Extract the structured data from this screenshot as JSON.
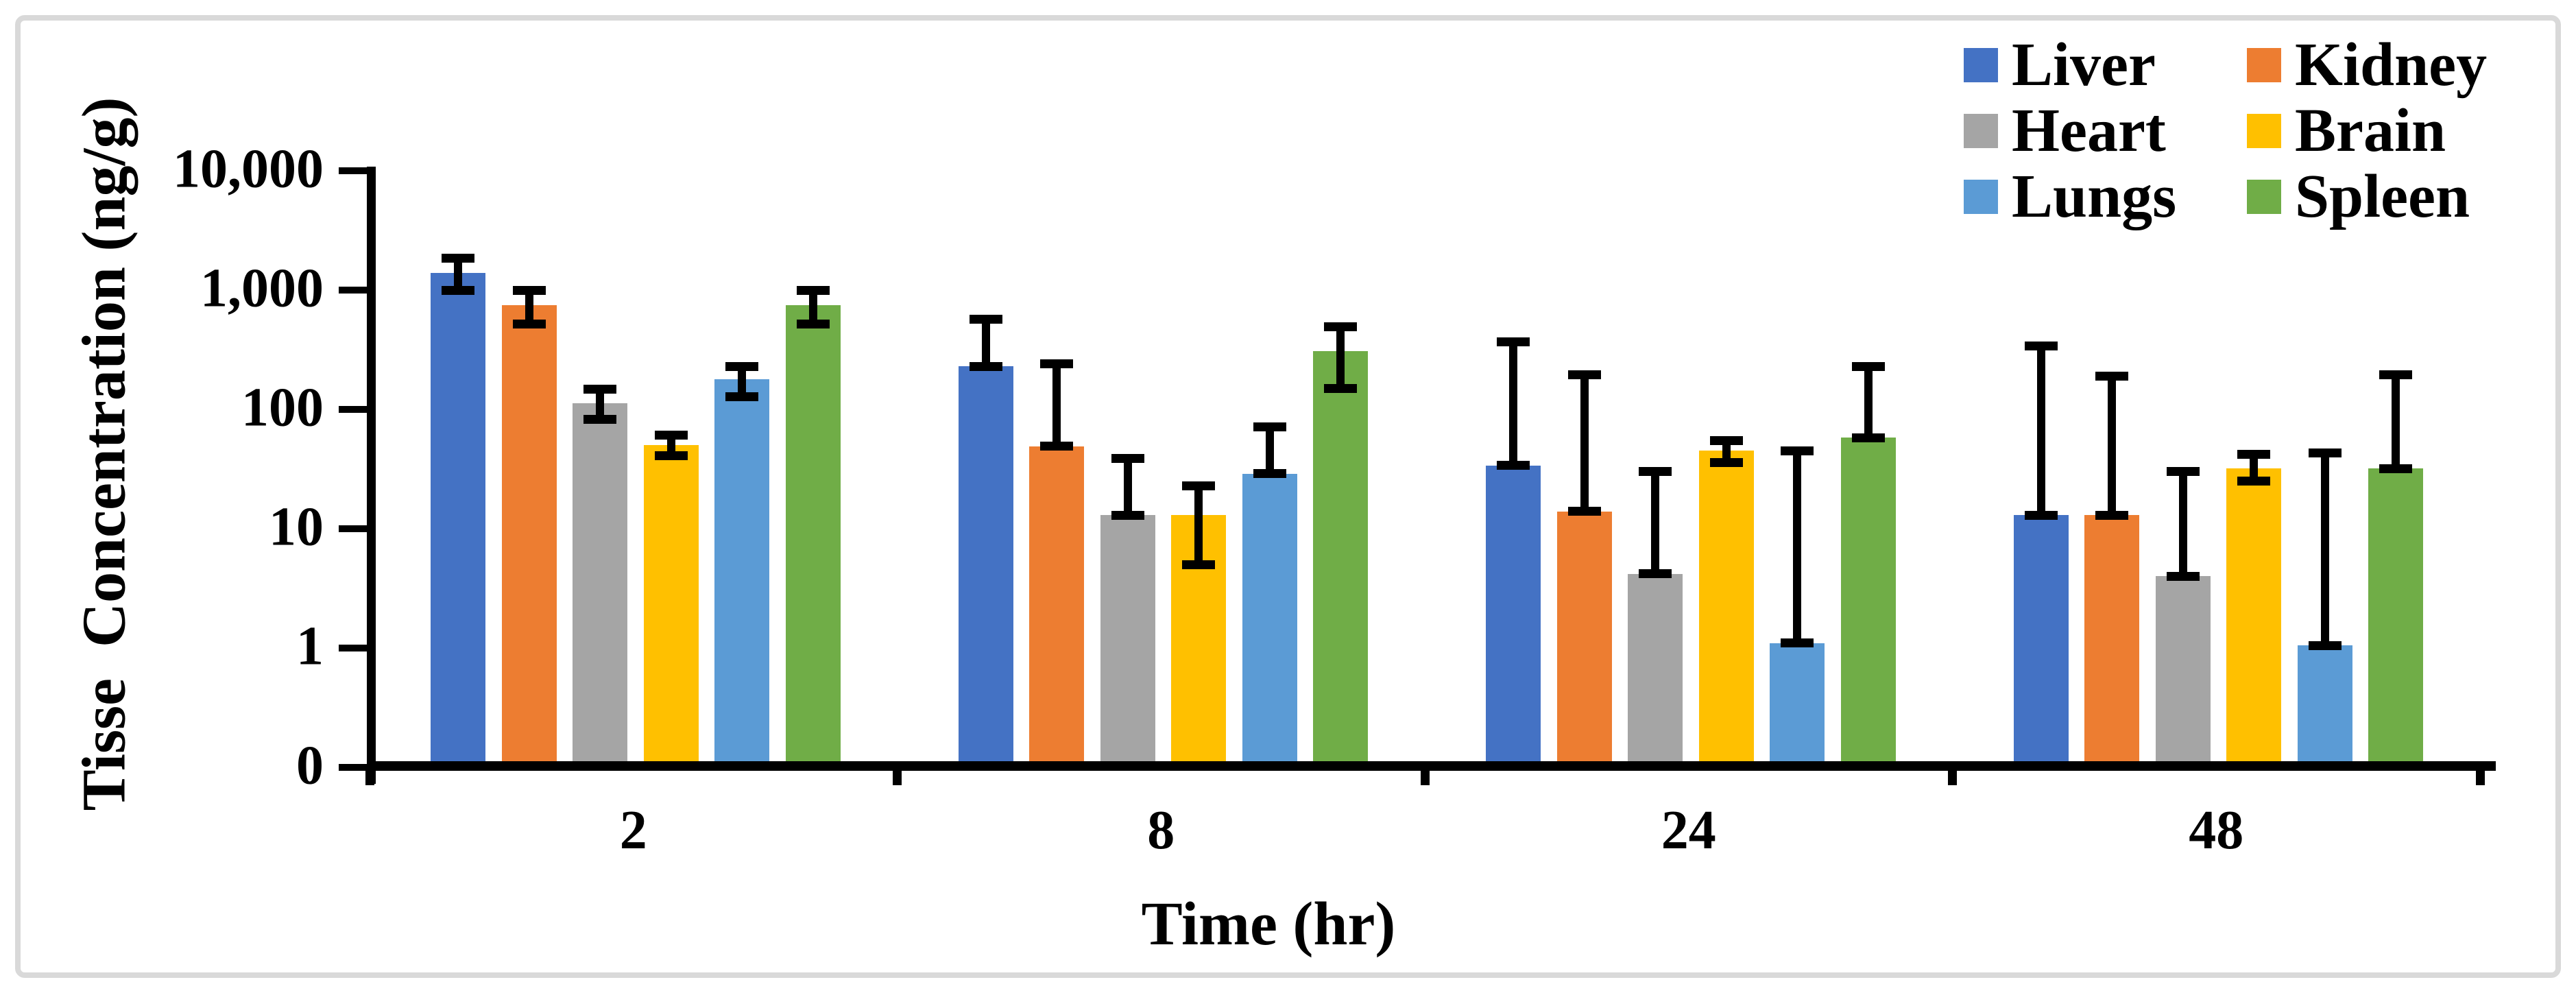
{
  "figure": {
    "background": "#FFFFFF",
    "border_color": "#D9D9D9"
  },
  "chart_data": {
    "type": "bar",
    "title": "",
    "xlabel": "Time (hr)",
    "ylabel": "Tisse  Concentration (ng/g)",
    "categories": [
      "2",
      "8",
      "24",
      "48"
    ],
    "y_scale": "log",
    "y_tick_labels": [
      "10,000",
      "1,000",
      "100",
      "10",
      "1",
      "0"
    ],
    "y_log_max": 4,
    "y_log_min": -1,
    "grid": false,
    "legend_position": "top-right",
    "error_bars": true,
    "series": [
      {
        "name": "Liver",
        "color": "#4472C4",
        "values": [
          1400,
          230,
          34,
          13
        ],
        "error_upper": [
          1840,
          570,
          370,
          340
        ],
        "error_lower": [
          1000,
          230,
          34,
          13
        ]
      },
      {
        "name": "Kidney",
        "color": "#ED7D31",
        "values": [
          750,
          49,
          14,
          13
        ],
        "error_upper": [
          1000,
          240,
          195,
          190
        ],
        "error_lower": [
          520,
          49,
          14,
          13
        ]
      },
      {
        "name": "Heart",
        "color": "#A5A5A5",
        "values": [
          113,
          13,
          4.2,
          4
        ],
        "error_upper": [
          148,
          39,
          30,
          30
        ],
        "error_lower": [
          83,
          13,
          4.2,
          4
        ]
      },
      {
        "name": "Brain",
        "color": "#FFC000",
        "values": [
          50,
          13,
          45,
          32
        ],
        "error_upper": [
          61,
          23,
          55,
          42
        ],
        "error_lower": [
          41,
          5,
          36,
          25
        ]
      },
      {
        "name": "Lungs",
        "color": "#5B9BD5",
        "values": [
          180,
          29,
          1.1,
          1.05
        ],
        "error_upper": [
          230,
          71,
          45,
          43
        ],
        "error_lower": [
          127,
          29,
          1.1,
          1.05
        ]
      },
      {
        "name": "Spleen",
        "color": "#70AD47",
        "values": [
          750,
          310,
          58,
          32
        ],
        "error_upper": [
          1000,
          490,
          230,
          196
        ],
        "error_lower": [
          520,
          150,
          58,
          32
        ]
      }
    ]
  }
}
